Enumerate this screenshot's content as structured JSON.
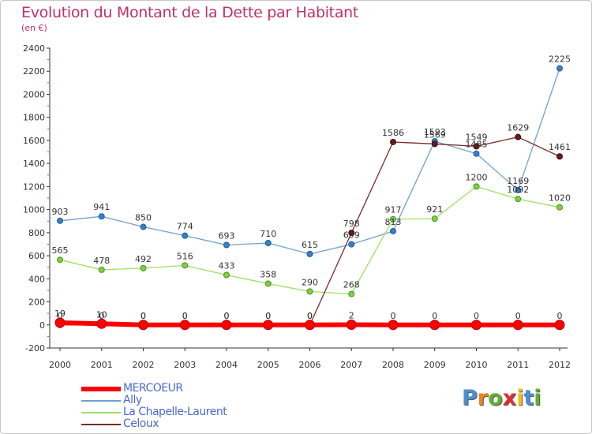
{
  "chart_data": {
    "type": "line",
    "title": "Evolution du Montant de la Dette par Habitant",
    "subtitle": "(en €)",
    "xlabel": "",
    "ylabel": "",
    "x": [
      "2000",
      "2001",
      "2002",
      "2003",
      "2004",
      "2005",
      "2006",
      "2007",
      "2008",
      "2009",
      "2010",
      "2011",
      "2012"
    ],
    "ylim": [
      -200,
      2400
    ],
    "yticks": [
      "-200",
      "0",
      "200",
      "400",
      "600",
      "800",
      "1000",
      "1200",
      "1400",
      "1600",
      "1800",
      "2000",
      "2200",
      "2400"
    ],
    "grid": false,
    "legend_position": "bottom-left",
    "series": [
      {
        "name": "MERCOEUR",
        "color": "#ff0000",
        "values": [
          19,
          10,
          0,
          0,
          0,
          0,
          0,
          2,
          0,
          0,
          0,
          0,
          0
        ]
      },
      {
        "name": "Ally",
        "color": "#6fa0d0",
        "values": [
          903,
          941,
          850,
          774,
          693,
          710,
          615,
          699,
          813,
          1593,
          1485,
          1169,
          2225
        ]
      },
      {
        "name": "La Chapelle-Laurent",
        "color": "#a0e060",
        "values": [
          565,
          478,
          492,
          516,
          433,
          358,
          290,
          268,
          917,
          921,
          1200,
          1092,
          1020
        ]
      },
      {
        "name": "Celoux",
        "color": "#7a2a2a",
        "values": [
          0,
          0,
          0,
          0,
          0,
          0,
          0,
          798,
          1586,
          1569,
          1549,
          1629,
          1461
        ]
      }
    ]
  },
  "logo": {
    "letters": [
      "P",
      "r",
      "o",
      "x",
      "i",
      "t",
      "i"
    ],
    "colors": [
      "#4a90d0",
      "#f08020",
      "#60b030",
      "#e03030",
      "#f0c020",
      "#4a90d0",
      "#60b030"
    ]
  }
}
